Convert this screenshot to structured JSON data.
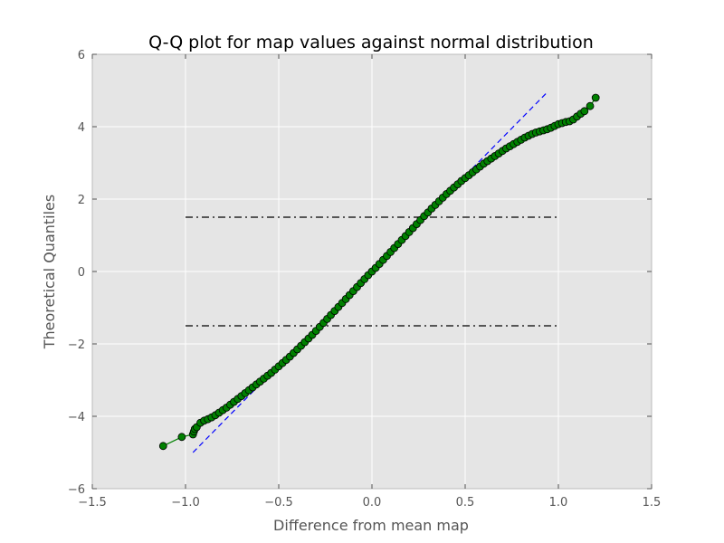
{
  "chart_data": {
    "type": "scatter",
    "title": "Q-Q plot for map values against normal distribution",
    "xlabel": "Difference from mean map",
    "ylabel": "Theoretical Quantiles",
    "xlim": [
      -1.5,
      1.5
    ],
    "ylim": [
      -6,
      6
    ],
    "xticks": [
      -1.5,
      -1.0,
      -0.5,
      0.0,
      0.5,
      1.0,
      1.5
    ],
    "xtick_labels": [
      "−1.5",
      "−1.0",
      "−0.5",
      "0.0",
      "0.5",
      "1.0",
      "1.5"
    ],
    "yticks": [
      -6,
      -4,
      -2,
      0,
      2,
      4,
      6
    ],
    "ytick_labels": [
      "−6",
      "−4",
      "−2",
      "0",
      "2",
      "4",
      "6"
    ],
    "grid": true,
    "background": "#e5e5e5",
    "grid_color": "#ffffff",
    "series": [
      {
        "role": "sample-quantiles",
        "color": "#008000",
        "edge_color": "#000000",
        "marker": "circle",
        "connected": true,
        "points": [
          [
            -1.12,
            -4.82
          ],
          [
            -1.02,
            -4.57
          ],
          [
            -0.96,
            -4.5
          ],
          [
            -0.955,
            -4.42
          ],
          [
            -0.95,
            -4.35
          ],
          [
            -0.94,
            -4.3
          ],
          [
            -0.92,
            -4.18
          ],
          [
            -0.9,
            -4.12
          ],
          [
            -0.88,
            -4.08
          ],
          [
            -0.86,
            -4.03
          ],
          [
            -0.84,
            -3.97
          ],
          [
            -0.82,
            -3.9
          ],
          [
            -0.8,
            -3.83
          ],
          [
            -0.78,
            -3.76
          ],
          [
            -0.76,
            -3.68
          ],
          [
            -0.74,
            -3.6
          ],
          [
            -0.72,
            -3.52
          ],
          [
            -0.7,
            -3.44
          ],
          [
            -0.68,
            -3.36
          ],
          [
            -0.66,
            -3.28
          ],
          [
            -0.64,
            -3.2
          ],
          [
            -0.62,
            -3.12
          ],
          [
            -0.6,
            -3.04
          ],
          [
            -0.58,
            -2.96
          ],
          [
            -0.56,
            -2.88
          ],
          [
            -0.54,
            -2.8
          ],
          [
            -0.52,
            -2.71
          ],
          [
            -0.5,
            -2.62
          ],
          [
            -0.48,
            -2.53
          ],
          [
            -0.46,
            -2.44
          ],
          [
            -0.44,
            -2.35
          ],
          [
            -0.42,
            -2.25
          ],
          [
            -0.4,
            -2.15
          ],
          [
            -0.38,
            -2.05
          ],
          [
            -0.36,
            -1.95
          ],
          [
            -0.34,
            -1.85
          ],
          [
            -0.32,
            -1.75
          ],
          [
            -0.3,
            -1.64
          ],
          [
            -0.28,
            -1.53
          ],
          [
            -0.26,
            -1.42
          ],
          [
            -0.24,
            -1.31
          ],
          [
            -0.22,
            -1.2
          ],
          [
            -0.2,
            -1.09
          ],
          [
            -0.18,
            -0.98
          ],
          [
            -0.16,
            -0.87
          ],
          [
            -0.14,
            -0.76
          ],
          [
            -0.12,
            -0.65
          ],
          [
            -0.1,
            -0.54
          ],
          [
            -0.08,
            -0.43
          ],
          [
            -0.06,
            -0.32
          ],
          [
            -0.04,
            -0.21
          ],
          [
            -0.02,
            -0.1
          ],
          [
            0.0,
            0.0
          ],
          [
            0.02,
            0.1
          ],
          [
            0.04,
            0.21
          ],
          [
            0.06,
            0.32
          ],
          [
            0.08,
            0.43
          ],
          [
            0.1,
            0.54
          ],
          [
            0.12,
            0.65
          ],
          [
            0.14,
            0.76
          ],
          [
            0.16,
            0.87
          ],
          [
            0.18,
            0.98
          ],
          [
            0.2,
            1.09
          ],
          [
            0.22,
            1.2
          ],
          [
            0.24,
            1.31
          ],
          [
            0.26,
            1.42
          ],
          [
            0.28,
            1.53
          ],
          [
            0.3,
            1.63
          ],
          [
            0.32,
            1.74
          ],
          [
            0.34,
            1.84
          ],
          [
            0.36,
            1.94
          ],
          [
            0.38,
            2.04
          ],
          [
            0.4,
            2.14
          ],
          [
            0.42,
            2.23
          ],
          [
            0.44,
            2.32
          ],
          [
            0.46,
            2.41
          ],
          [
            0.48,
            2.5
          ],
          [
            0.5,
            2.58
          ],
          [
            0.52,
            2.66
          ],
          [
            0.54,
            2.74
          ],
          [
            0.56,
            2.82
          ],
          [
            0.58,
            2.9
          ],
          [
            0.6,
            2.98
          ],
          [
            0.62,
            3.05
          ],
          [
            0.64,
            3.12
          ],
          [
            0.66,
            3.19
          ],
          [
            0.68,
            3.26
          ],
          [
            0.7,
            3.33
          ],
          [
            0.72,
            3.4
          ],
          [
            0.74,
            3.46
          ],
          [
            0.76,
            3.52
          ],
          [
            0.78,
            3.58
          ],
          [
            0.8,
            3.64
          ],
          [
            0.82,
            3.7
          ],
          [
            0.84,
            3.75
          ],
          [
            0.86,
            3.8
          ],
          [
            0.88,
            3.84
          ],
          [
            0.9,
            3.87
          ],
          [
            0.92,
            3.9
          ],
          [
            0.94,
            3.93
          ],
          [
            0.96,
            3.97
          ],
          [
            0.98,
            4.02
          ],
          [
            1.0,
            4.07
          ],
          [
            1.02,
            4.1
          ],
          [
            1.04,
            4.13
          ],
          [
            1.06,
            4.15
          ],
          [
            1.08,
            4.2
          ],
          [
            1.1,
            4.28
          ],
          [
            1.12,
            4.36
          ],
          [
            1.14,
            4.43
          ],
          [
            1.17,
            4.57
          ],
          [
            1.2,
            4.8
          ]
        ]
      },
      {
        "role": "reference-line",
        "color": "#0000ff",
        "style": "dashed",
        "points": [
          [
            -0.96,
            -5.0
          ],
          [
            0.94,
            4.95
          ]
        ]
      },
      {
        "role": "upper-threshold",
        "color": "#000000",
        "style": "dash-dot",
        "points": [
          [
            -1.0,
            1.5
          ],
          [
            1.0,
            1.5
          ]
        ]
      },
      {
        "role": "lower-threshold",
        "color": "#000000",
        "style": "dash-dot",
        "points": [
          [
            -1.0,
            -1.5
          ],
          [
            1.0,
            -1.5
          ]
        ]
      }
    ]
  }
}
